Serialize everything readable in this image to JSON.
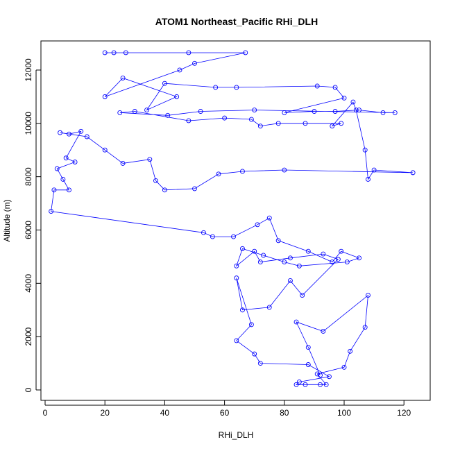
{
  "chart_data": {
    "type": "line",
    "title": "ATOM1 Northeast_Pacific RHi_DLH",
    "xlabel": "RHi_DLH",
    "ylabel": "Altitude (m)",
    "xlim": [
      0,
      128
    ],
    "ylim": [
      -500,
      13000
    ],
    "xticks": [
      0,
      20,
      40,
      60,
      80,
      100,
      120
    ],
    "yticks": [
      0,
      2000,
      4000,
      6000,
      8000,
      10000,
      12000
    ],
    "grid": false,
    "series": [
      {
        "color": "#0000ff",
        "marker": "open-circle",
        "points": [
          [
            20,
            12650
          ],
          [
            23,
            12650
          ],
          [
            27,
            12650
          ],
          [
            48,
            12650
          ],
          [
            67,
            12650
          ],
          [
            50,
            12250
          ],
          [
            45,
            12000
          ],
          [
            20,
            11000
          ],
          [
            26,
            11700
          ],
          [
            44,
            11000
          ],
          [
            34,
            10500
          ],
          [
            40,
            11500
          ],
          [
            57,
            11350
          ],
          [
            64,
            11350
          ],
          [
            91,
            11400
          ],
          [
            97,
            11350
          ],
          [
            100,
            10950
          ],
          [
            80,
            10400
          ],
          [
            90,
            10450
          ],
          [
            97,
            10450
          ],
          [
            105,
            10500
          ],
          [
            113,
            10400
          ],
          [
            117,
            10400
          ],
          [
            70,
            10500
          ],
          [
            52,
            10450
          ],
          [
            41,
            10300
          ],
          [
            25,
            10400
          ],
          [
            30,
            10450
          ],
          [
            48,
            10100
          ],
          [
            60,
            10200
          ],
          [
            69,
            10150
          ],
          [
            72,
            9900
          ],
          [
            78,
            10000
          ],
          [
            87,
            10000
          ],
          [
            99,
            10000
          ],
          [
            96,
            9900
          ],
          [
            103,
            10800
          ],
          [
            104,
            10500
          ],
          [
            107,
            9000
          ],
          [
            108,
            7900
          ],
          [
            110,
            8250
          ],
          [
            123,
            8150
          ],
          [
            80,
            8250
          ],
          [
            66,
            8200
          ],
          [
            58,
            8100
          ],
          [
            50,
            7550
          ],
          [
            40,
            7500
          ],
          [
            37,
            7850
          ],
          [
            35,
            8650
          ],
          [
            26,
            8500
          ],
          [
            20,
            9000
          ],
          [
            14,
            9500
          ],
          [
            5,
            9650
          ],
          [
            8,
            9600
          ],
          [
            12,
            9700
          ],
          [
            7,
            8700
          ],
          [
            10,
            8550
          ],
          [
            4,
            8300
          ],
          [
            6,
            7900
          ],
          [
            8,
            7500
          ],
          [
            3,
            7500
          ],
          [
            2,
            6700
          ],
          [
            53,
            5900
          ],
          [
            56,
            5750
          ],
          [
            63,
            5750
          ],
          [
            71,
            6200
          ],
          [
            75,
            6450
          ],
          [
            78,
            5600
          ],
          [
            88,
            5200
          ],
          [
            96,
            4800
          ],
          [
            99,
            5200
          ],
          [
            105,
            4950
          ],
          [
            101,
            4800
          ],
          [
            85,
            4650
          ],
          [
            80,
            4800
          ],
          [
            73,
            5050
          ],
          [
            66,
            5300
          ],
          [
            64,
            4650
          ],
          [
            70,
            5200
          ],
          [
            72,
            4800
          ],
          [
            82,
            4950
          ],
          [
            93,
            5100
          ],
          [
            98,
            4900
          ],
          [
            86,
            3550
          ],
          [
            82,
            4100
          ],
          [
            75,
            3100
          ],
          [
            66,
            3000
          ],
          [
            64,
            4200
          ],
          [
            69,
            2450
          ],
          [
            64,
            1850
          ],
          [
            70,
            1350
          ],
          [
            72,
            1000
          ],
          [
            88,
            950
          ],
          [
            95,
            500
          ],
          [
            85,
            300
          ],
          [
            84,
            200
          ],
          [
            87,
            200
          ],
          [
            92,
            200
          ],
          [
            94,
            200
          ],
          [
            91,
            600
          ],
          [
            100,
            850
          ],
          [
            102,
            1450
          ],
          [
            107,
            2350
          ],
          [
            108,
            3550
          ],
          [
            93,
            2200
          ],
          [
            84,
            2550
          ],
          [
            88,
            1600
          ],
          [
            92,
            550
          ]
        ]
      }
    ]
  }
}
